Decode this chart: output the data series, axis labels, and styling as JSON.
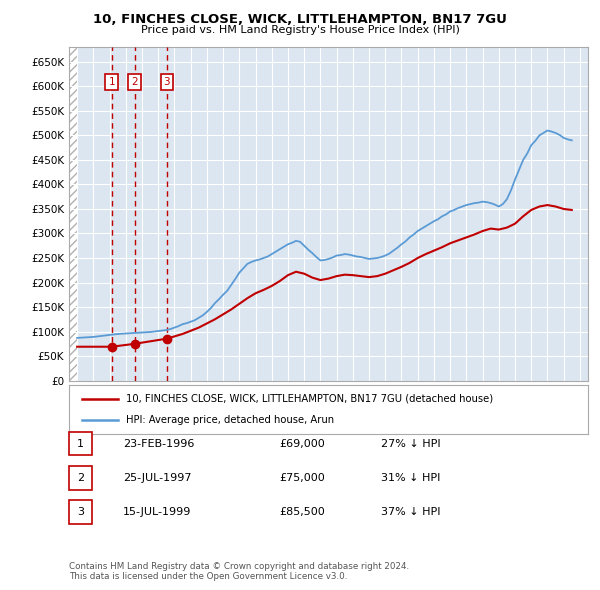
{
  "title1": "10, FINCHES CLOSE, WICK, LITTLEHAMPTON, BN17 7GU",
  "title2": "Price paid vs. HM Land Registry's House Price Index (HPI)",
  "ylabel_ticks": [
    "£0",
    "£50K",
    "£100K",
    "£150K",
    "£200K",
    "£250K",
    "£300K",
    "£350K",
    "£400K",
    "£450K",
    "£500K",
    "£550K",
    "£600K",
    "£650K"
  ],
  "ytick_values": [
    0,
    50000,
    100000,
    150000,
    200000,
    250000,
    300000,
    350000,
    400000,
    450000,
    500000,
    550000,
    600000,
    650000
  ],
  "xlim": [
    1993.5,
    2025.5
  ],
  "ylim": [
    0,
    680000
  ],
  "hpi_color": "#5b9bd5",
  "price_color": "#c00000",
  "bg_color": "#dce6f1",
  "sale_dates": [
    1996.14,
    1997.56,
    1999.54
  ],
  "sale_prices": [
    69000,
    75000,
    85500
  ],
  "sale_labels": [
    "1",
    "2",
    "3"
  ],
  "legend_price_label": "10, FINCHES CLOSE, WICK, LITTLEHAMPTON, BN17 7GU (detached house)",
  "legend_hpi_label": "HPI: Average price, detached house, Arun",
  "table_data": [
    [
      "1",
      "23-FEB-1996",
      "£69,000",
      "27% ↓ HPI"
    ],
    [
      "2",
      "25-JUL-1997",
      "£75,000",
      "31% ↓ HPI"
    ],
    [
      "3",
      "15-JUL-1999",
      "£85,500",
      "37% ↓ HPI"
    ]
  ],
  "footer": "Contains HM Land Registry data © Crown copyright and database right 2024.\nThis data is licensed under the Open Government Licence v3.0.",
  "hpi_years": [
    1994,
    1994.25,
    1994.5,
    1994.75,
    1995,
    1995.25,
    1995.5,
    1995.75,
    1996,
    1996.25,
    1996.5,
    1996.75,
    1997,
    1997.25,
    1997.5,
    1997.75,
    1998,
    1998.25,
    1998.5,
    1998.75,
    1999,
    1999.25,
    1999.5,
    1999.75,
    2000,
    2000.25,
    2000.5,
    2000.75,
    2001,
    2001.25,
    2001.5,
    2001.75,
    2002,
    2002.25,
    2002.5,
    2002.75,
    2003,
    2003.25,
    2003.5,
    2003.75,
    2004,
    2004.25,
    2004.5,
    2004.75,
    2005,
    2005.25,
    2005.5,
    2005.75,
    2006,
    2006.25,
    2006.5,
    2006.75,
    2007,
    2007.25,
    2007.5,
    2007.75,
    2008,
    2008.25,
    2008.5,
    2008.75,
    2009,
    2009.25,
    2009.5,
    2009.75,
    2010,
    2010.25,
    2010.5,
    2010.75,
    2011,
    2011.25,
    2011.5,
    2011.75,
    2012,
    2012.25,
    2012.5,
    2012.75,
    2013,
    2013.25,
    2013.5,
    2013.75,
    2014,
    2014.25,
    2014.5,
    2014.75,
    2015,
    2015.25,
    2015.5,
    2015.75,
    2016,
    2016.25,
    2016.5,
    2016.75,
    2017,
    2017.25,
    2017.5,
    2017.75,
    2018,
    2018.25,
    2018.5,
    2018.75,
    2019,
    2019.25,
    2019.5,
    2019.75,
    2020,
    2020.25,
    2020.5,
    2020.75,
    2021,
    2021.25,
    2021.5,
    2021.75,
    2022,
    2022.25,
    2022.5,
    2022.75,
    2023,
    2023.25,
    2023.5,
    2023.75,
    2024,
    2024.25,
    2024.5
  ],
  "hpi_values": [
    87000,
    87500,
    88000,
    88500,
    89000,
    90000,
    91000,
    92000,
    93000,
    94000,
    95000,
    95500,
    96000,
    96500,
    97000,
    97500,
    98000,
    98500,
    99000,
    100000,
    101000,
    102000,
    103000,
    105000,
    108000,
    111000,
    115000,
    117000,
    120000,
    123000,
    128000,
    133000,
    140000,
    148000,
    158000,
    166000,
    175000,
    183000,
    195000,
    207000,
    220000,
    229000,
    238000,
    242000,
    245000,
    247000,
    250000,
    253000,
    258000,
    263000,
    268000,
    273000,
    278000,
    281000,
    285000,
    283000,
    275000,
    267000,
    260000,
    252000,
    245000,
    246000,
    248000,
    251000,
    255000,
    256000,
    258000,
    257000,
    255000,
    253000,
    252000,
    250000,
    248000,
    249000,
    250000,
    252000,
    255000,
    259000,
    265000,
    271000,
    278000,
    284000,
    292000,
    298000,
    305000,
    310000,
    315000,
    320000,
    325000,
    329000,
    335000,
    339000,
    345000,
    348000,
    352000,
    355000,
    358000,
    360000,
    362000,
    363000,
    365000,
    364000,
    362000,
    359000,
    355000,
    360000,
    370000,
    388000,
    410000,
    430000,
    450000,
    463000,
    480000,
    489000,
    500000,
    505000,
    510000,
    508000,
    505000,
    501000,
    495000,
    492000,
    490000
  ],
  "price_years": [
    1994.0,
    1996.14,
    1997.56,
    1999.54,
    2000.5,
    2001.5,
    2002.5,
    2003.5,
    2004.5,
    2005.0,
    2005.5,
    2006.0,
    2006.5,
    2007.0,
    2007.5,
    2008.0,
    2008.5,
    2009.0,
    2009.5,
    2010.0,
    2010.5,
    2011.0,
    2011.5,
    2012.0,
    2012.5,
    2013.0,
    2013.5,
    2014.0,
    2014.5,
    2015.0,
    2015.5,
    2016.0,
    2016.5,
    2017.0,
    2017.5,
    2018.0,
    2018.5,
    2019.0,
    2019.5,
    2020.0,
    2020.5,
    2021.0,
    2021.5,
    2022.0,
    2022.5,
    2023.0,
    2023.5,
    2024.0,
    2024.5
  ],
  "price_values": [
    69000,
    69000,
    75000,
    85500,
    95000,
    108000,
    125000,
    145000,
    168000,
    178000,
    185000,
    193000,
    203000,
    215000,
    222000,
    218000,
    210000,
    205000,
    208000,
    213000,
    216000,
    215000,
    213000,
    211000,
    213000,
    218000,
    225000,
    232000,
    240000,
    250000,
    258000,
    265000,
    272000,
    280000,
    286000,
    292000,
    298000,
    305000,
    310000,
    308000,
    312000,
    320000,
    335000,
    348000,
    355000,
    358000,
    355000,
    350000,
    348000
  ]
}
